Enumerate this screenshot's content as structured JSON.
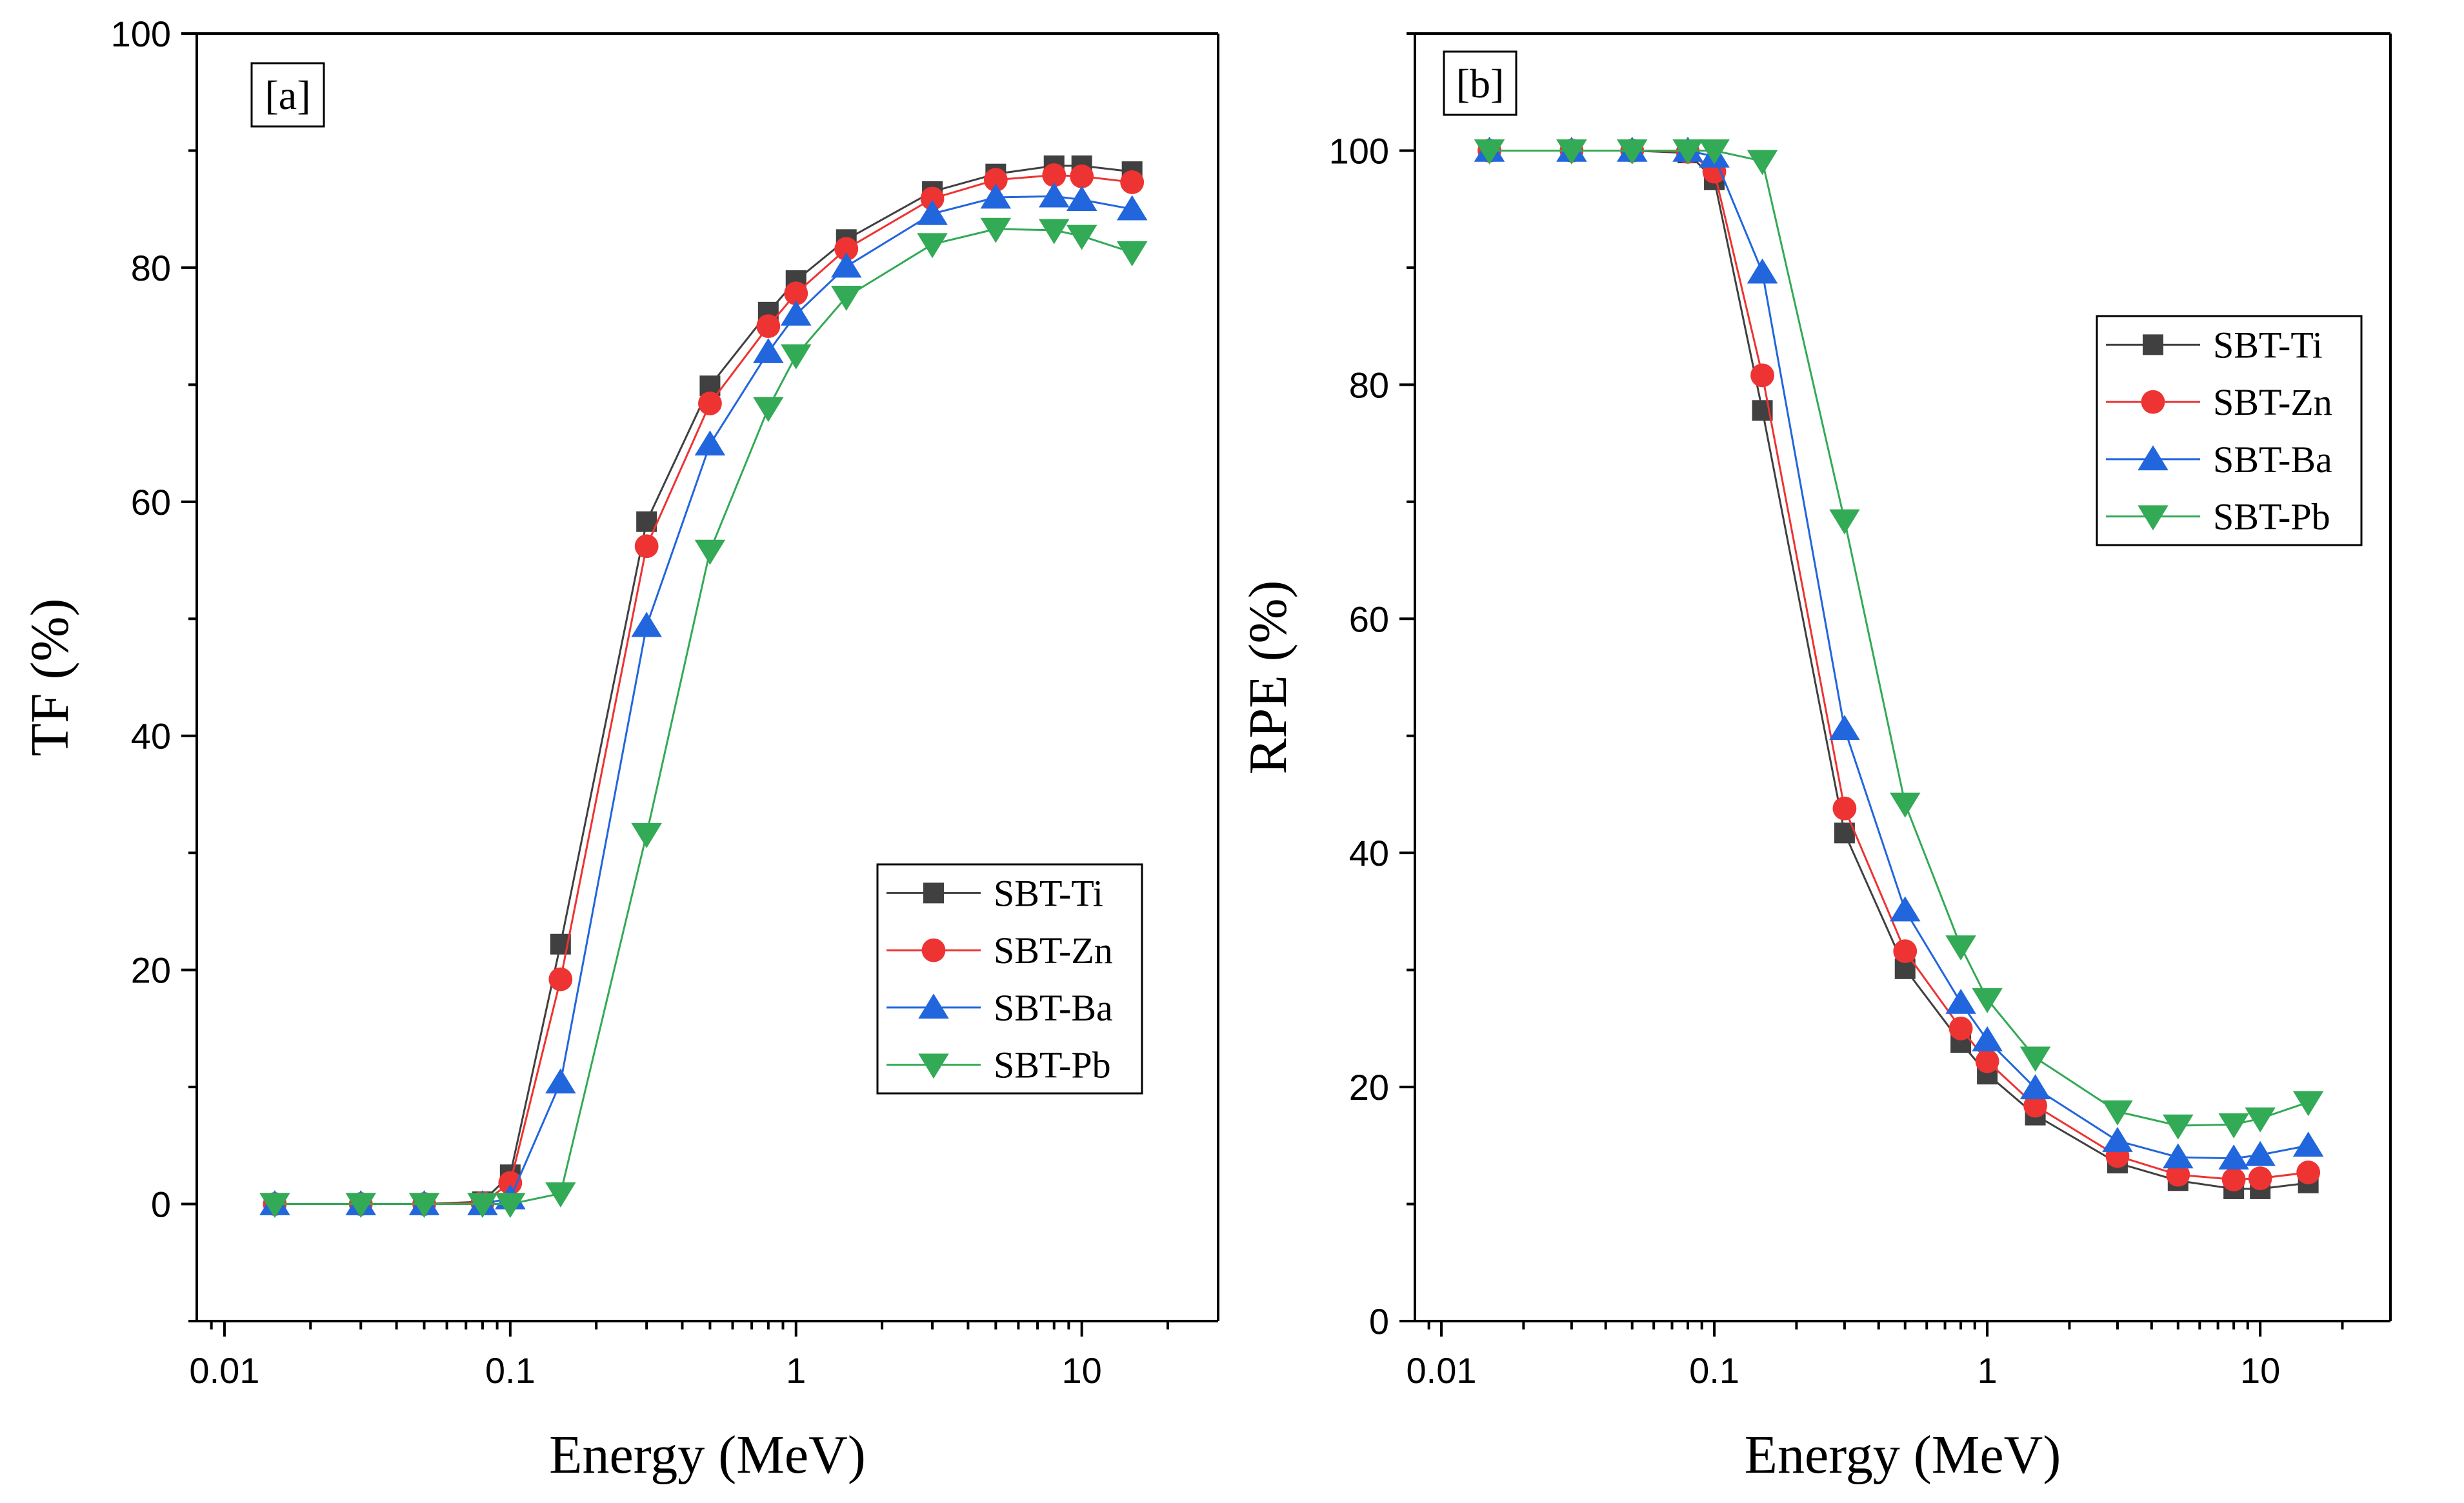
{
  "colors": {
    "SBT-Ti": "#404040",
    "SBT-Zn": "#ee3333",
    "SBT-Ba": "#2266dd",
    "SBT-Pb": "#33aa55"
  },
  "markers": {
    "SBT-Ti": "square",
    "SBT-Zn": "circle",
    "SBT-Ba": "triangle-up",
    "SBT-Pb": "triangle-down"
  },
  "chart_data": [
    {
      "type": "line",
      "panel_label": "[a]",
      "xlabel": "Energy (MeV)",
      "ylabel": "TF (%)",
      "xscale": "log",
      "xlim": [
        0.008,
        30
      ],
      "ylim": [
        -10,
        100
      ],
      "xticks": [
        0.01,
        0.1,
        1,
        10
      ],
      "xtick_labels": [
        "0.01",
        "0.1",
        "1",
        "10"
      ],
      "yticks": [
        0,
        20,
        40,
        60,
        80,
        100
      ],
      "ytick_labels": [
        "0",
        "20",
        "40",
        "60",
        "80",
        "100"
      ],
      "legend_position": "center-right",
      "x": [
        0.015,
        0.03,
        0.05,
        0.08,
        0.1,
        0.15,
        0.3,
        0.5,
        0.8,
        1,
        1.5,
        3,
        5,
        8,
        10,
        15
      ],
      "series": [
        {
          "name": "SBT-Ti",
          "values": [
            0,
            0,
            0,
            0.2,
            2.5,
            22.2,
            58.3,
            69.9,
            76.2,
            78.9,
            82.4,
            86.5,
            88.0,
            88.7,
            88.7,
            88.2
          ]
        },
        {
          "name": "SBT-Zn",
          "values": [
            0,
            0,
            0,
            0.1,
            1.8,
            19.2,
            56.2,
            68.4,
            75.0,
            77.8,
            81.6,
            85.9,
            87.5,
            87.9,
            87.8,
            87.3
          ]
        },
        {
          "name": "SBT-Ba",
          "values": [
            0,
            0,
            0,
            0,
            0.5,
            10.4,
            49.4,
            64.9,
            72.8,
            76.0,
            80.1,
            84.6,
            86.0,
            86.1,
            85.8,
            85.0
          ]
        },
        {
          "name": "SBT-Pb",
          "values": [
            0,
            0,
            0,
            0,
            0,
            0.9,
            31.6,
            55.8,
            68.0,
            72.5,
            77.5,
            82.0,
            83.3,
            83.2,
            82.7,
            81.3
          ]
        }
      ]
    },
    {
      "type": "line",
      "panel_label": "[b]",
      "xlabel": "Energy (MeV)",
      "ylabel": "RPE (%)",
      "xscale": "log",
      "xlim": [
        0.008,
        30
      ],
      "ylim": [
        0,
        110
      ],
      "xticks": [
        0.01,
        0.1,
        1,
        10
      ],
      "xtick_labels": [
        "0.01",
        "0.1",
        "1",
        "10"
      ],
      "yticks": [
        0,
        20,
        40,
        60,
        80,
        100
      ],
      "ytick_labels": [
        "0",
        "20",
        "40",
        "60",
        "80",
        "100"
      ],
      "legend_position": "upper-right",
      "x": [
        0.015,
        0.03,
        0.05,
        0.08,
        0.1,
        0.15,
        0.3,
        0.5,
        0.8,
        1,
        1.5,
        3,
        5,
        8,
        10,
        15
      ],
      "series": [
        {
          "name": "SBT-Ti",
          "values": [
            100,
            100,
            100,
            99.8,
            97.5,
            77.8,
            41.7,
            30.1,
            23.8,
            21.1,
            17.6,
            13.5,
            12.0,
            11.3,
            11.3,
            11.8
          ]
        },
        {
          "name": "SBT-Zn",
          "values": [
            100,
            100,
            100,
            99.9,
            98.2,
            80.8,
            43.8,
            31.6,
            25.0,
            22.2,
            18.4,
            14.1,
            12.5,
            12.1,
            12.2,
            12.7
          ]
        },
        {
          "name": "SBT-Ba",
          "values": [
            100,
            100,
            100,
            100,
            99.5,
            89.6,
            50.6,
            35.1,
            27.2,
            24.0,
            19.9,
            15.4,
            14.0,
            13.9,
            14.2,
            15.0
          ]
        },
        {
          "name": "SBT-Pb",
          "values": [
            100,
            100,
            100,
            100,
            100,
            99.1,
            68.4,
            44.2,
            32.0,
            27.5,
            22.5,
            17.9,
            16.7,
            16.8,
            17.3,
            18.7
          ]
        }
      ]
    }
  ]
}
